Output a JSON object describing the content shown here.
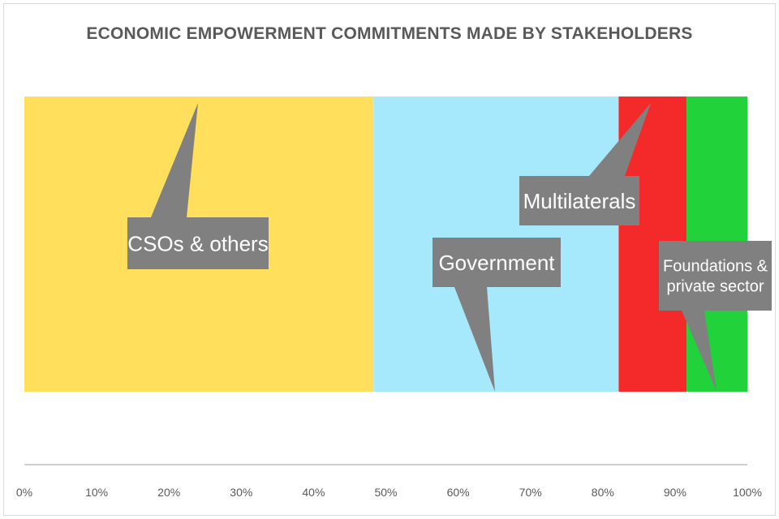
{
  "chart_data": {
    "type": "bar",
    "orientation": "horizontal",
    "stacked": "percent",
    "title": "ECONOMIC EMPOWERMENT COMMITMENTS MADE BY STAKEHOLDERS",
    "xlabel": "",
    "ylabel": "",
    "xlim": [
      0,
      100
    ],
    "x_ticks": [
      "0%",
      "10%",
      "20%",
      "30%",
      "40%",
      "50%",
      "60%",
      "70%",
      "80%",
      "90%",
      "100%"
    ],
    "grid": false,
    "legend": "none",
    "series": [
      {
        "name": "CSOs & others",
        "values": [
          48.3
        ],
        "color": "#FFDF5C"
      },
      {
        "name": "Government",
        "values": [
          33.9
        ],
        "color": "#A6E8FC"
      },
      {
        "name": "Multilaterals",
        "values": [
          9.4
        ],
        "color": "#F42A2A"
      },
      {
        "name": "Foundations & private sector",
        "values": [
          8.4
        ],
        "color": "#22D23A"
      }
    ],
    "data_labels": [
      {
        "lines": [
          "CSOs & others"
        ]
      },
      {
        "lines": [
          "Government"
        ]
      },
      {
        "lines": [
          "Multilaterals"
        ]
      },
      {
        "lines": [
          "Foundations &",
          "private sector"
        ]
      }
    ],
    "colors": {
      "callout": "#808080",
      "axis": "#bfbfbf"
    }
  }
}
